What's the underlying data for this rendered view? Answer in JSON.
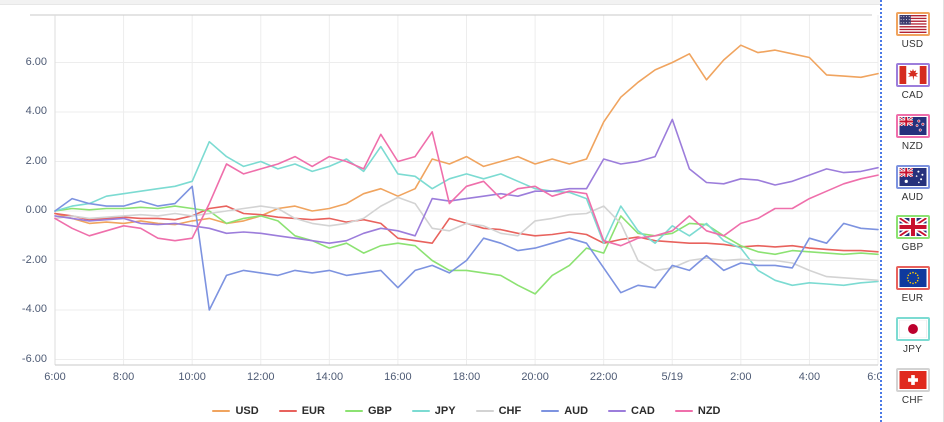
{
  "chart_data": {
    "type": "line",
    "title": "",
    "xlabel": "",
    "ylabel": "",
    "x_start_label": "6:00",
    "x_end_label": "6:00",
    "sample_interval_minutes": 30,
    "x_tick_labels": [
      "6:00",
      "8:00",
      "10:00",
      "12:00",
      "14:00",
      "16:00",
      "18:00",
      "20:00",
      "22:00",
      "5/19",
      "2:00",
      "4:00",
      "6:00"
    ],
    "y_ticks": [
      6,
      4,
      2,
      0,
      -2,
      -4,
      -6
    ],
    "y_tick_labels": [
      "6.00",
      "4.00",
      "2.00",
      "0.00",
      "-2.00",
      "-4.00",
      "-6.00"
    ],
    "ylim": [
      -6.2,
      7.9
    ],
    "grid": true,
    "legend_position": "bottom",
    "series": [
      {
        "name": "USD",
        "color": "#f0a45f",
        "values": [
          -0.1,
          -0.3,
          -0.5,
          -0.45,
          -0.5,
          -0.4,
          -0.5,
          -0.55,
          -0.4,
          -0.3,
          -0.5,
          -0.4,
          -0.2,
          0.1,
          0.2,
          0,
          0.1,
          0.3,
          0.7,
          0.9,
          0.6,
          0.9,
          2.1,
          1.9,
          2.2,
          1.8,
          2,
          2.2,
          1.9,
          2.1,
          1.9,
          2.1,
          3.6,
          4.6,
          5.2,
          5.7,
          6,
          6.35,
          5.3,
          6.1,
          6.7,
          6.4,
          6.5,
          6.35,
          6.2,
          5.5,
          5.45,
          5.4,
          5.55
        ]
      },
      {
        "name": "EUR",
        "color": "#e8625d",
        "values": [
          -0.1,
          -0.2,
          -0.35,
          -0.3,
          -0.25,
          -0.3,
          -0.3,
          -0.35,
          -0.2,
          0.1,
          0.2,
          -0.1,
          -0.15,
          -0.25,
          -0.3,
          -0.35,
          -0.3,
          -0.45,
          -0.35,
          -0.5,
          -1.1,
          -1.2,
          -1.3,
          -0.3,
          -0.5,
          -0.7,
          -0.75,
          -0.9,
          -1,
          -0.95,
          -0.85,
          -0.95,
          -1.3,
          -1.15,
          -1.05,
          -1.2,
          -1.25,
          -1.3,
          -1.3,
          -1.35,
          -1.45,
          -1.4,
          -1.45,
          -1.4,
          -1.5,
          -1.55,
          -1.6,
          -1.6,
          -1.65
        ]
      },
      {
        "name": "GBP",
        "color": "#8ce272",
        "values": [
          0,
          0.1,
          0.05,
          0.1,
          0.1,
          0.15,
          0.1,
          0.2,
          0.1,
          0,
          -0.5,
          -0.3,
          -0.2,
          -0.4,
          -1,
          -1.2,
          -1.5,
          -1.3,
          -1.7,
          -1.4,
          -1.3,
          -1.4,
          -2,
          -2.4,
          -2.4,
          -2.5,
          -2.6,
          -3,
          -3.35,
          -2.6,
          -2.2,
          -1.5,
          -1.7,
          -0.2,
          -0.9,
          -1,
          -0.9,
          -0.5,
          -0.55,
          -1,
          -1.4,
          -1.65,
          -1.75,
          -1.6,
          -1.65,
          -1.7,
          -1.75,
          -1.7,
          -1.75
        ]
      },
      {
        "name": "JPY",
        "color": "#7cdbd2",
        "values": [
          0,
          0.2,
          0.3,
          0.6,
          0.7,
          0.8,
          0.9,
          1,
          1.2,
          2.8,
          2.2,
          1.8,
          2,
          1.7,
          1.9,
          1.6,
          1.8,
          2.1,
          1.6,
          2.6,
          1.5,
          1.4,
          0.9,
          1.3,
          1.5,
          1.3,
          1.5,
          1.2,
          0.9,
          0.8,
          0.75,
          0.5,
          -1.3,
          0.2,
          -0.8,
          -1.3,
          -0.6,
          -1,
          -0.5,
          -1.2,
          -1.5,
          -2.4,
          -2.8,
          -3,
          -2.9,
          -2.95,
          -3,
          -2.9,
          -2.85
        ]
      },
      {
        "name": "CHF",
        "color": "#d3d3d3",
        "values": [
          -0.3,
          -0.2,
          -0.3,
          -0.25,
          -0.2,
          -0.15,
          -0.2,
          -0.1,
          -0.2,
          -0.1,
          0,
          0.1,
          0.2,
          0.1,
          -0.3,
          -0.5,
          -0.6,
          -0.5,
          -0.3,
          0.2,
          0.55,
          0.3,
          -0.7,
          -0.8,
          -0.5,
          -0.6,
          -0.9,
          -1,
          -0.4,
          -0.3,
          -0.15,
          -0.1,
          0.2,
          -0.5,
          -2,
          -2.4,
          -2.3,
          -2,
          -1.9,
          -2,
          -1.95,
          -2,
          -2,
          -2.1,
          -2.4,
          -2.65,
          -2.7,
          -2.75,
          -2.8
        ]
      },
      {
        "name": "AUD",
        "color": "#7d93e0",
        "values": [
          0,
          0.5,
          0.3,
          0.2,
          0.2,
          0.4,
          0.2,
          0.3,
          1,
          -4,
          -2.6,
          -2.4,
          -2.5,
          -2.6,
          -2.4,
          -2.5,
          -2.4,
          -2.6,
          -2.5,
          -2.4,
          -3.1,
          -2.4,
          -2.2,
          -2.5,
          -2,
          -1.1,
          -1.3,
          -1.6,
          -1.5,
          -1.3,
          -1.1,
          -1.3,
          -2.3,
          -3.3,
          -3,
          -3.1,
          -2.2,
          -2.4,
          -1.8,
          -2.4,
          -2.1,
          -2.2,
          -2.2,
          -2.3,
          -1.1,
          -1.3,
          -0.5,
          -0.7,
          -0.75
        ]
      },
      {
        "name": "CAD",
        "color": "#9c7ddb",
        "values": [
          -0.2,
          -0.3,
          -0.4,
          -0.35,
          -0.3,
          -0.5,
          -0.55,
          -0.5,
          -0.6,
          -0.7,
          -0.9,
          -0.85,
          -0.9,
          -1,
          -1.1,
          -1.2,
          -1.3,
          -1.2,
          -0.9,
          -0.7,
          -0.8,
          -1,
          0.5,
          0.4,
          0.5,
          0.6,
          0.7,
          0.6,
          0.8,
          0.8,
          0.9,
          0.9,
          2.1,
          1.9,
          2,
          2.2,
          3.7,
          1.7,
          1.15,
          1.1,
          1.3,
          1.25,
          1.05,
          1.2,
          1.45,
          1.7,
          1.55,
          1.6,
          1.75
        ]
      },
      {
        "name": "NZD",
        "color": "#ef6fab",
        "values": [
          -0.3,
          -0.7,
          -1,
          -0.8,
          -0.6,
          -0.7,
          -1.1,
          -1.2,
          -1.1,
          0.3,
          1.9,
          1.5,
          1.7,
          1.9,
          2.2,
          1.8,
          2.2,
          2,
          1.7,
          3.1,
          2,
          2.2,
          3.2,
          0.3,
          1,
          1.2,
          0.5,
          0.9,
          1,
          0.6,
          0.8,
          0.7,
          -1.2,
          -1.4,
          -1.1,
          -1,
          -0.8,
          -0.2,
          -0.8,
          -1,
          -0.5,
          -0.3,
          0.1,
          0.1,
          0.5,
          0.8,
          1.1,
          1.3,
          1.45
        ]
      }
    ]
  },
  "legend": {
    "items": [
      "USD",
      "EUR",
      "GBP",
      "JPY",
      "CHF",
      "AUD",
      "CAD",
      "NZD"
    ]
  },
  "sidebar": {
    "items": [
      {
        "code": "USD",
        "label": "USD",
        "border_color": "#f0a45f"
      },
      {
        "code": "CAD",
        "label": "CAD",
        "border_color": "#9c7ddb"
      },
      {
        "code": "NZD",
        "label": "NZD",
        "border_color": "#ef6fab"
      },
      {
        "code": "AUD",
        "label": "AUD",
        "border_color": "#7d93e0"
      },
      {
        "code": "GBP",
        "label": "GBP",
        "border_color": "#8ce272"
      },
      {
        "code": "EUR",
        "label": "EUR",
        "border_color": "#e8625d"
      },
      {
        "code": "JPY",
        "label": "JPY",
        "border_color": "#7cdbd2"
      },
      {
        "code": "CHF",
        "label": "CHF",
        "border_color": "#d3d3d3"
      }
    ]
  },
  "colors": {
    "grid_line": "#ededed",
    "axis_line": "#c9c9c9",
    "side_axis_line": "#dddddd",
    "tick_text": "#4d5a74",
    "legend_text": "#2b2b2b",
    "divider": "#4a79e6"
  }
}
